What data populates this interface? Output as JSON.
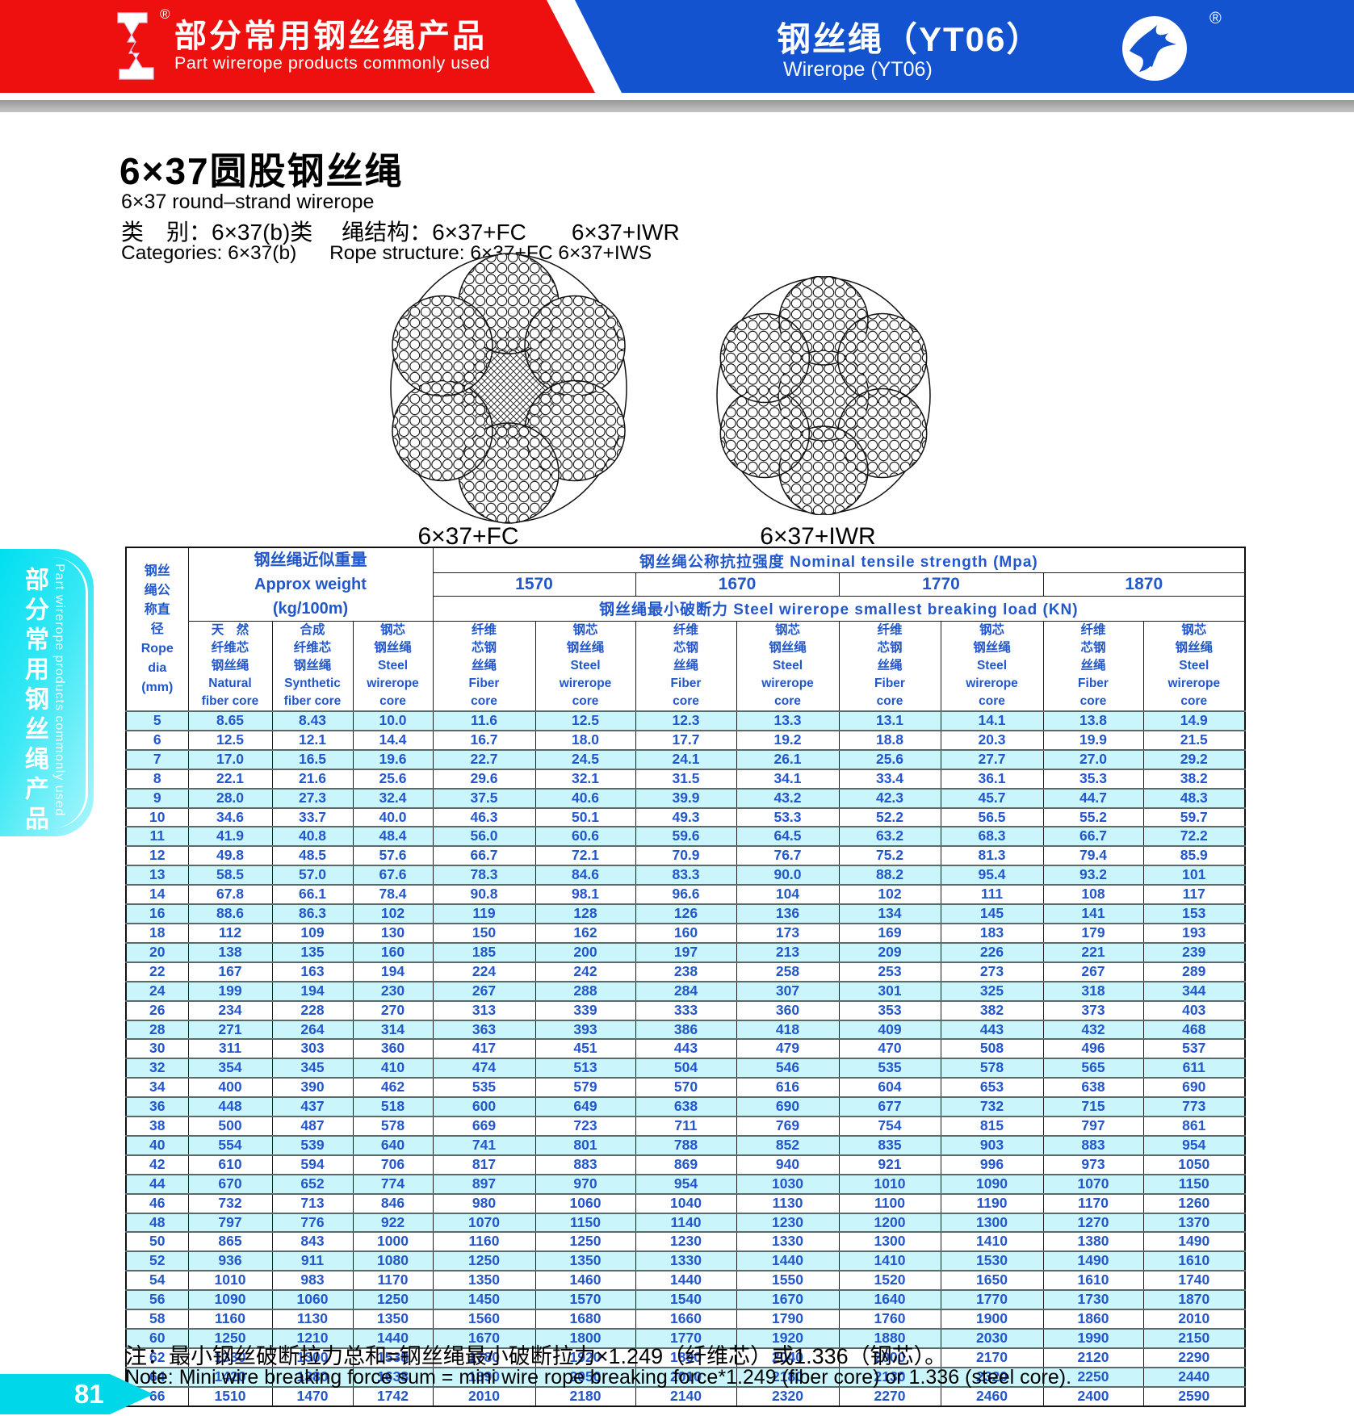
{
  "banner": {
    "left": {
      "title_zh": "部分常用钢丝绳产品",
      "title_en": "Part wirerope products commonly used",
      "reg": "®"
    },
    "right": {
      "title_zh": "钢丝绳（YT06）",
      "title_en": "Wirerope (YT06)",
      "reg": "®"
    }
  },
  "sidebar": {
    "text_zh": "部分常用钢丝绳产品",
    "text_en": "Part wirerope products commonly used"
  },
  "intro": {
    "title_zh": "6×37圆股钢丝绳",
    "title_en": "6×37 round–strand wirerope",
    "category_zh": "类　别：6×37(b)类　 绳结构：6×37+FC　　6×37+IWR",
    "category_en": "Categories: 6×37(b)      Rope structure: 6×37+FC 6×37+IWS"
  },
  "diagrams": {
    "left_label": "6×37+FC",
    "right_label": "6×37+IWR"
  },
  "table": {
    "dia_header": "钢丝\n绳公\n称直\n径\nRope\ndia\n(mm)",
    "weight_header": "钢丝绳近似重量\nApprox weight\n(kg/100m)",
    "strength_title": "钢丝绳公称抗拉强度 Nominal tensile strength (Mpa)",
    "breaking_title": "钢丝绳最小破断力 Steel wirerope smallest breaking load  (KN)",
    "strength_values": [
      "1570",
      "1670",
      "1770",
      "1870"
    ],
    "sub": {
      "natural": "天　然\n纤维芯\n钢丝绳\nNatural\nfiber core",
      "synthetic": "合成\n纤维芯\n钢丝绳\nSynthetic\nfiber core",
      "steel_weight": "钢芯\n钢丝绳\nSteel\nwirerope\ncore",
      "fiber": "纤维\n芯钢\n丝绳\nFiber\ncore",
      "steel": "钢芯\n钢丝绳\nSteel\nwirerope\ncore"
    },
    "rows": [
      [
        "5",
        "8.65",
        "8.43",
        "10.0",
        "11.6",
        "12.5",
        "12.3",
        "13.3",
        "13.1",
        "14.1",
        "13.8",
        "14.9"
      ],
      [
        "6",
        "12.5",
        "12.1",
        "14.4",
        "16.7",
        "18.0",
        "17.7",
        "19.2",
        "18.8",
        "20.3",
        "19.9",
        "21.5"
      ],
      [
        "7",
        "17.0",
        "16.5",
        "19.6",
        "22.7",
        "24.5",
        "24.1",
        "26.1",
        "25.6",
        "27.7",
        "27.0",
        "29.2"
      ],
      [
        "8",
        "22.1",
        "21.6",
        "25.6",
        "29.6",
        "32.1",
        "31.5",
        "34.1",
        "33.4",
        "36.1",
        "35.3",
        "38.2"
      ],
      [
        "9",
        "28.0",
        "27.3",
        "32.4",
        "37.5",
        "40.6",
        "39.9",
        "43.2",
        "42.3",
        "45.7",
        "44.7",
        "48.3"
      ],
      [
        "10",
        "34.6",
        "33.7",
        "40.0",
        "46.3",
        "50.1",
        "49.3",
        "53.3",
        "52.2",
        "56.5",
        "55.2",
        "59.7"
      ],
      [
        "11",
        "41.9",
        "40.8",
        "48.4",
        "56.0",
        "60.6",
        "59.6",
        "64.5",
        "63.2",
        "68.3",
        "66.7",
        "72.2"
      ],
      [
        "12",
        "49.8",
        "48.5",
        "57.6",
        "66.7",
        "72.1",
        "70.9",
        "76.7",
        "75.2",
        "81.3",
        "79.4",
        "85.9"
      ],
      [
        "13",
        "58.5",
        "57.0",
        "67.6",
        "78.3",
        "84.6",
        "83.3",
        "90.0",
        "88.2",
        "95.4",
        "93.2",
        "101"
      ],
      [
        "14",
        "67.8",
        "66.1",
        "78.4",
        "90.8",
        "98.1",
        "96.6",
        "104",
        "102",
        "111",
        "108",
        "117"
      ],
      [
        "16",
        "88.6",
        "86.3",
        "102",
        "119",
        "128",
        "126",
        "136",
        "134",
        "145",
        "141",
        "153"
      ],
      [
        "18",
        "112",
        "109",
        "130",
        "150",
        "162",
        "160",
        "173",
        "169",
        "183",
        "179",
        "193"
      ],
      [
        "20",
        "138",
        "135",
        "160",
        "185",
        "200",
        "197",
        "213",
        "209",
        "226",
        "221",
        "239"
      ],
      [
        "22",
        "167",
        "163",
        "194",
        "224",
        "242",
        "238",
        "258",
        "253",
        "273",
        "267",
        "289"
      ],
      [
        "24",
        "199",
        "194",
        "230",
        "267",
        "288",
        "284",
        "307",
        "301",
        "325",
        "318",
        "344"
      ],
      [
        "26",
        "234",
        "228",
        "270",
        "313",
        "339",
        "333",
        "360",
        "353",
        "382",
        "373",
        "403"
      ],
      [
        "28",
        "271",
        "264",
        "314",
        "363",
        "393",
        "386",
        "418",
        "409",
        "443",
        "432",
        "468"
      ],
      [
        "30",
        "311",
        "303",
        "360",
        "417",
        "451",
        "443",
        "479",
        "470",
        "508",
        "496",
        "537"
      ],
      [
        "32",
        "354",
        "345",
        "410",
        "474",
        "513",
        "504",
        "546",
        "535",
        "578",
        "565",
        "611"
      ],
      [
        "34",
        "400",
        "390",
        "462",
        "535",
        "579",
        "570",
        "616",
        "604",
        "653",
        "638",
        "690"
      ],
      [
        "36",
        "448",
        "437",
        "518",
        "600",
        "649",
        "638",
        "690",
        "677",
        "732",
        "715",
        "773"
      ],
      [
        "38",
        "500",
        "487",
        "578",
        "669",
        "723",
        "711",
        "769",
        "754",
        "815",
        "797",
        "861"
      ],
      [
        "40",
        "554",
        "539",
        "640",
        "741",
        "801",
        "788",
        "852",
        "835",
        "903",
        "883",
        "954"
      ],
      [
        "42",
        "610",
        "594",
        "706",
        "817",
        "883",
        "869",
        "940",
        "921",
        "996",
        "973",
        "1050"
      ],
      [
        "44",
        "670",
        "652",
        "774",
        "897",
        "970",
        "954",
        "1030",
        "1010",
        "1090",
        "1070",
        "1150"
      ],
      [
        "46",
        "732",
        "713",
        "846",
        "980",
        "1060",
        "1040",
        "1130",
        "1100",
        "1190",
        "1170",
        "1260"
      ],
      [
        "48",
        "797",
        "776",
        "922",
        "1070",
        "1150",
        "1140",
        "1230",
        "1200",
        "1300",
        "1270",
        "1370"
      ],
      [
        "50",
        "865",
        "843",
        "1000",
        "1160",
        "1250",
        "1230",
        "1330",
        "1300",
        "1410",
        "1380",
        "1490"
      ],
      [
        "52",
        "936",
        "911",
        "1080",
        "1250",
        "1350",
        "1330",
        "1440",
        "1410",
        "1530",
        "1490",
        "1610"
      ],
      [
        "54",
        "1010",
        "983",
        "1170",
        "1350",
        "1460",
        "1440",
        "1550",
        "1520",
        "1650",
        "1610",
        "1740"
      ],
      [
        "56",
        "1090",
        "1060",
        "1250",
        "1450",
        "1570",
        "1540",
        "1670",
        "1640",
        "1770",
        "1730",
        "1870"
      ],
      [
        "58",
        "1160",
        "1130",
        "1350",
        "1560",
        "1680",
        "1660",
        "1790",
        "1760",
        "1900",
        "1860",
        "2010"
      ],
      [
        "60",
        "1250",
        "1210",
        "1440",
        "1670",
        "1800",
        "1770",
        "1920",
        "1880",
        "2030",
        "1990",
        "2150"
      ],
      [
        "62",
        "1330",
        "1300",
        "1538",
        "1780",
        "1920",
        "1890",
        "2040",
        "2000",
        "2170",
        "2120",
        "2290"
      ],
      [
        "64",
        "1420",
        "1380",
        "1638",
        "1890",
        "2050",
        "2010",
        "2180",
        "2130",
        "2320",
        "2250",
        "2440"
      ],
      [
        "66",
        "1510",
        "1470",
        "1742",
        "2010",
        "2180",
        "2140",
        "2320",
        "2270",
        "2460",
        "2400",
        "2590"
      ]
    ]
  },
  "note": {
    "zh": "注：最小钢丝破断拉力总和=钢丝绳最小破断拉力×1.249（纤维芯）或1.336（钢芯）。",
    "en": "Note: Mini wire breaking force sum = mini wire rope breaking force*1.249 (fiber core) or  1.336 (steel core)."
  },
  "page_number": "81",
  "colors": {
    "banner_red": "#ee0f0f",
    "banner_blue": "#1353cf",
    "accent_cyan": "#00d7e8",
    "table_stripe": "#c9f5fb",
    "table_text": "#2257cb"
  }
}
